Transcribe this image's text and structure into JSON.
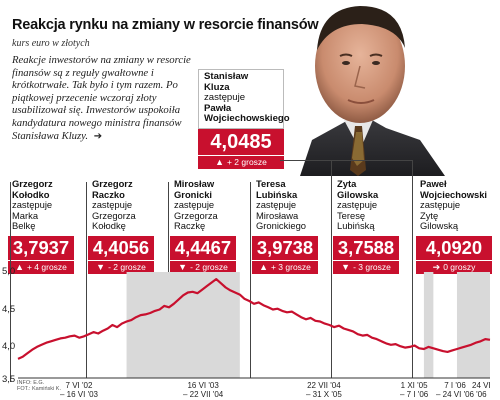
{
  "header": {
    "title": "Reakcja rynku na zmiany w resorcie finansów",
    "subtitle": "kurs euro w złotych"
  },
  "lead": {
    "text": "Reakcje inwestorów na zmiany w resorcie finansów są z reguły gwałtowne i krótkotrwałe. Tak było i tym razem. Po piątkowej przecenie wczoraj złoty usabilizował się. Inwestorów uspokoiła kandydatura nowego ministra finansów Stanisława Kluzy.",
    "arrow": "➔"
  },
  "featured": {
    "name_line1": "Stanisław",
    "name_line2": "Kluza",
    "replaces": "zastępuje",
    "prev_line1": "Pawła",
    "prev_line2": "Wojciechowskiego",
    "rate": "4,0485",
    "change": "+ 2 grosze",
    "direction": "up"
  },
  "cards": [
    {
      "first": "Grzegorz",
      "last": "Kołodko",
      "replaces": "zastępuje",
      "prev1": "Marka",
      "prev2": "Belkę",
      "rate": "3,7937",
      "change": "+ 4 grosze",
      "direction": "up"
    },
    {
      "first": "Grzegorz",
      "last": "Raczko",
      "replaces": "zastępuje",
      "prev1": "Grzegorza",
      "prev2": "Kołodkę",
      "rate": "4,4056",
      "change": "- 2 grosze",
      "direction": "down"
    },
    {
      "first": "Mirosław",
      "last": "Gronicki",
      "replaces": "zastępuje",
      "prev1": "Grzegorza",
      "prev2": "Raczkę",
      "rate": "4,4467",
      "change": "- 2 grosze",
      "direction": "down"
    },
    {
      "first": "Teresa",
      "last": "Lubińska",
      "replaces": "zastępuje",
      "prev1": "Mirosława",
      "prev2": "Gronickiego",
      "rate": "3,9738",
      "change": "+ 3 grosze",
      "direction": "up"
    },
    {
      "first": "Zyta",
      "last": "Gilowska",
      "replaces": "zastępuje",
      "prev1": "Teresę",
      "prev2": "Lubińską",
      "rate": "3,7588",
      "change": "- 3 grosze",
      "direction": "down"
    },
    {
      "first": "Paweł",
      "last": "Wojciechowski",
      "replaces": "zastępuje",
      "prev1": "Zytę",
      "prev2": "Gilowską",
      "rate": "4,0920",
      "change": "0 groszy",
      "direction": "flat"
    }
  ],
  "chart_data": {
    "type": "line",
    "title": "Reakcja rynku na zmiany w resorcie finansów",
    "ylabel": "kurs euro w złotych",
    "ylim": [
      3.5,
      5.0
    ],
    "yticks": [
      "5,0",
      "4,5",
      "4,0",
      "3,5"
    ],
    "grid": false,
    "series": [
      {
        "values": [
          3.77,
          3.8,
          3.85,
          3.9,
          3.94,
          3.97,
          4.0,
          4.02,
          4.04,
          4.06,
          4.07,
          4.09,
          4.1,
          4.07,
          4.09,
          4.12,
          4.15,
          4.13,
          4.17,
          4.2,
          4.25,
          4.22,
          4.27,
          4.3,
          4.32,
          4.36,
          4.39,
          4.4,
          4.42,
          4.45,
          4.47,
          4.52,
          4.5,
          4.55,
          4.61,
          4.67,
          4.71,
          4.72,
          4.7,
          4.75,
          4.8,
          4.85,
          4.9,
          4.84,
          4.78,
          4.74,
          4.71,
          4.68,
          4.62,
          4.59,
          4.55,
          4.57,
          4.53,
          4.5,
          4.47,
          4.48,
          4.45,
          4.43,
          4.44,
          4.4,
          4.36,
          4.33,
          4.35,
          4.31,
          4.3,
          4.27,
          4.25,
          4.22,
          4.24,
          4.2,
          4.18,
          4.16,
          4.12,
          4.1,
          4.11,
          4.07,
          4.05,
          4.02,
          3.99,
          3.97,
          3.98,
          3.95,
          3.93,
          3.94,
          3.96,
          3.92,
          3.91,
          3.94,
          3.92,
          3.9,
          3.88,
          3.87,
          3.89,
          3.91,
          3.93,
          3.95,
          3.97,
          4.0,
          4.02,
          4.05,
          4.04
        ]
      }
    ],
    "shaded_periods": [
      {
        "label": "16 VI '03 – 22 VII '04",
        "start": 23,
        "end": 47
      },
      {
        "label": "1 XI '05 – 7 I '06",
        "start": 86,
        "end": 88
      },
      {
        "label": "24 VI '06 – 7 I '06",
        "start": 93,
        "end": 100
      }
    ],
    "date_labels": [
      {
        "line1": "7 VI '02",
        "line2": "– 16 VI '03"
      },
      {
        "line1": "16 VI '03",
        "line2": "– 22 VII '04"
      },
      {
        "line1": "22 VII '04",
        "line2": "– 31 X '05"
      },
      {
        "line1": "1 XI '05",
        "line2": "– 7 I '06"
      },
      {
        "line1": "7 I '06",
        "line2": "– 24 VI '06"
      },
      {
        "line1": "24 VI",
        "line2": "'06"
      }
    ]
  },
  "source": {
    "line1": "INFO: E.G.",
    "line2": "FOT.: Kamiński K."
  },
  "colors": {
    "accent": "#c8102e",
    "shade": "#d9d9d9",
    "line": "#c8102e"
  }
}
